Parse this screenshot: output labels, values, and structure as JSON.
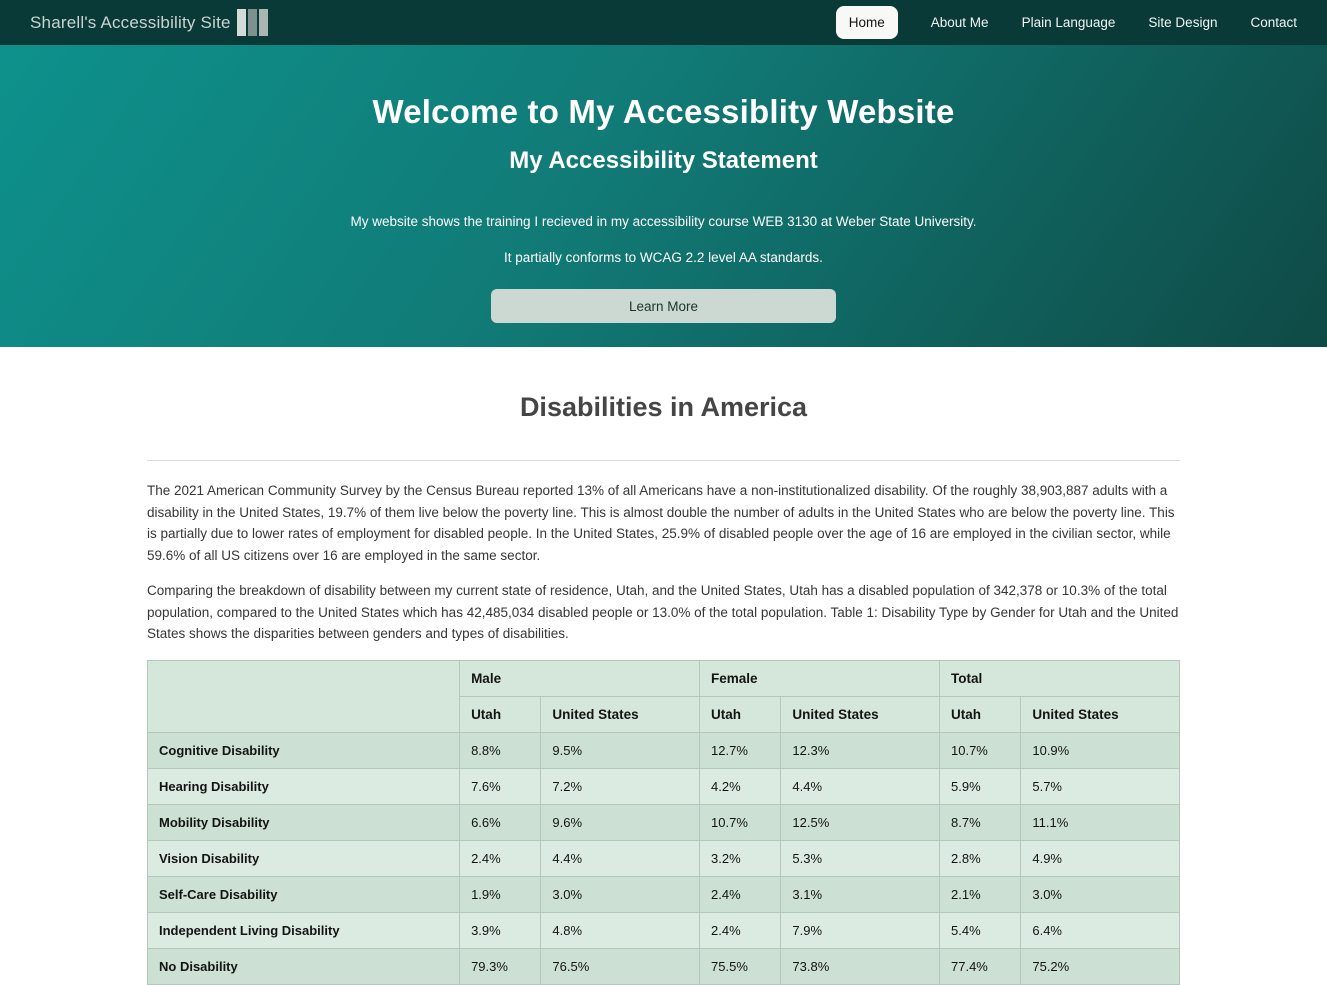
{
  "nav": {
    "brand": "Sharell's Accessibility Site",
    "items": [
      {
        "label": "Home",
        "active": true
      },
      {
        "label": "About Me",
        "active": false
      },
      {
        "label": "Plain Language",
        "active": false
      },
      {
        "label": "Site Design",
        "active": false
      },
      {
        "label": "Contact",
        "active": false
      }
    ]
  },
  "hero": {
    "title": "Welcome to My Accessiblity Website",
    "subtitle": "My Accessibility Statement",
    "line1": "My website shows the training I recieved in my accessibility course WEB 3130 at Weber State University.",
    "line2": "It partially conforms to WCAG 2.2 level AA standards.",
    "button_label": "Learn More"
  },
  "main": {
    "heading": "Disabilities in America",
    "paragraphs": [
      "The 2021 American Community Survey by the Census Bureau reported 13% of all Americans have a non-institutionalized disability. Of the roughly 38,903,887 adults with a disability in the United States, 19.7% of them live below the poverty line. This is almost double the number of adults in the United States who are below the poverty line. This is partially due to lower rates of employment for disabled people. In the United States, 25.9% of disabled people over the age of 16 are employed in the civilian sector, while 59.6% of all US citizens over 16 are employed in the same sector.",
      "Comparing the breakdown of disability between my current state of residence, Utah, and the United States, Utah has a disabled population of 342,378 or 10.3% of the total population, compared to the United States which has 42,485,034 disabled people or 13.0% of the total population. Table 1: Disability Type by Gender for Utah and the United States shows the disparities between genders and types of disabilities."
    ]
  },
  "table": {
    "group_headers": [
      "Male",
      "Female",
      "Total"
    ],
    "sub_headers": [
      "Utah",
      "United States",
      "Utah",
      "United States",
      "Utah",
      "United States"
    ],
    "rows": [
      {
        "label": "Cognitive Disability",
        "values": [
          "8.8%",
          "9.5%",
          "12.7%",
          "12.3%",
          "10.7%",
          "10.9%"
        ]
      },
      {
        "label": "Hearing Disability",
        "values": [
          "7.6%",
          "7.2%",
          "4.2%",
          "4.4%",
          "5.9%",
          "5.7%"
        ]
      },
      {
        "label": "Mobility Disability",
        "values": [
          "6.6%",
          "9.6%",
          "10.7%",
          "12.5%",
          "8.7%",
          "11.1%"
        ]
      },
      {
        "label": "Vision Disability",
        "values": [
          "2.4%",
          "4.4%",
          "3.2%",
          "5.3%",
          "2.8%",
          "4.9%"
        ]
      },
      {
        "label": "Self-Care Disability",
        "values": [
          "1.9%",
          "3.0%",
          "2.4%",
          "3.1%",
          "2.1%",
          "3.0%"
        ]
      },
      {
        "label": "Independent Living Disability",
        "values": [
          "3.9%",
          "4.8%",
          "2.4%",
          "7.9%",
          "5.4%",
          "6.4%"
        ]
      },
      {
        "label": "No Disability",
        "values": [
          "79.3%",
          "76.5%",
          "75.5%",
          "73.8%",
          "77.4%",
          "75.2%"
        ]
      }
    ]
  },
  "colors": {
    "nav_bg": "#093a38",
    "hero_gradient_start": "#0e918c",
    "hero_gradient_end": "#0f4a46",
    "button_bg": "#ccd9d3",
    "table_header_bg": "#d5e7db",
    "table_row_dark": "#cde0d4",
    "table_row_light": "#dcebe1"
  }
}
